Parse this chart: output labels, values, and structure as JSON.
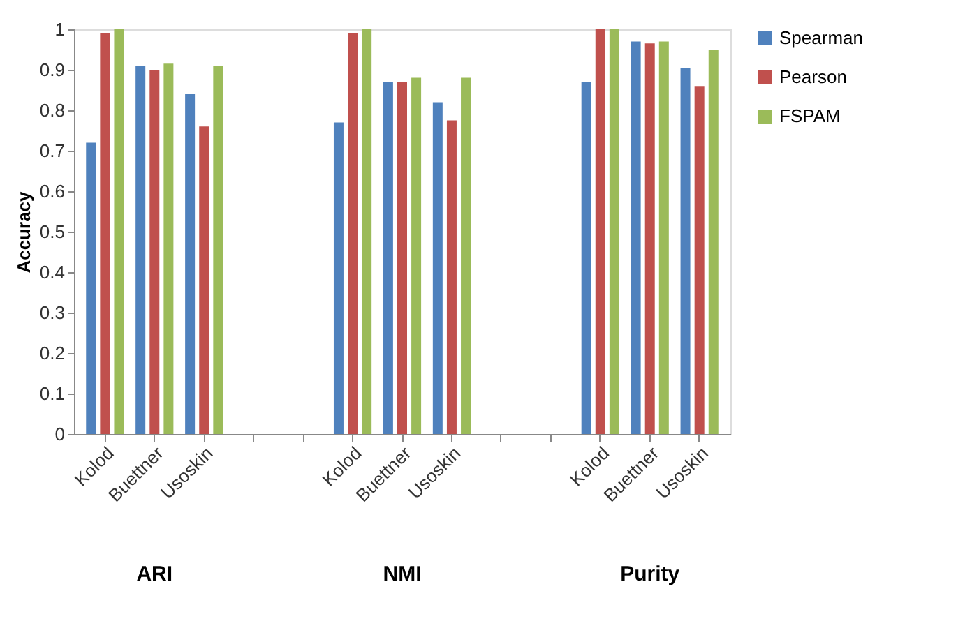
{
  "chart_data": {
    "type": "bar",
    "ylabel": "Accuracy",
    "categories": [
      "Kolod",
      "Buettner",
      "Usoskin",
      null,
      null,
      "Kolod",
      "Buettner",
      "Usoskin",
      null,
      null,
      "Kolod",
      "Buettner",
      "Usoskin"
    ],
    "series": [
      {
        "name": "Spearman",
        "color": "#4f81bd",
        "values": [
          0.72,
          0.91,
          0.84,
          null,
          null,
          0.77,
          0.87,
          0.82,
          null,
          null,
          0.87,
          0.97,
          0.905
        ]
      },
      {
        "name": "Pearson",
        "color": "#c0504d",
        "values": [
          0.99,
          0.9,
          0.76,
          null,
          null,
          0.99,
          0.87,
          0.775,
          null,
          null,
          1.0,
          0.965,
          0.86
        ]
      },
      {
        "name": "FSPAM",
        "color": "#9bbb59",
        "values": [
          1.0,
          0.915,
          0.91,
          null,
          null,
          1.0,
          0.88,
          0.88,
          null,
          null,
          1.0,
          0.97,
          0.95
        ]
      }
    ],
    "annotations": [
      "ARI",
      "NMI",
      "Purity"
    ],
    "ylim": [
      0,
      1
    ],
    "yticks": [
      0,
      0.1,
      0.2,
      0.3,
      0.4,
      0.5,
      0.6,
      0.7,
      0.8,
      0.9,
      1
    ],
    "grid": false,
    "legend": "right"
  }
}
